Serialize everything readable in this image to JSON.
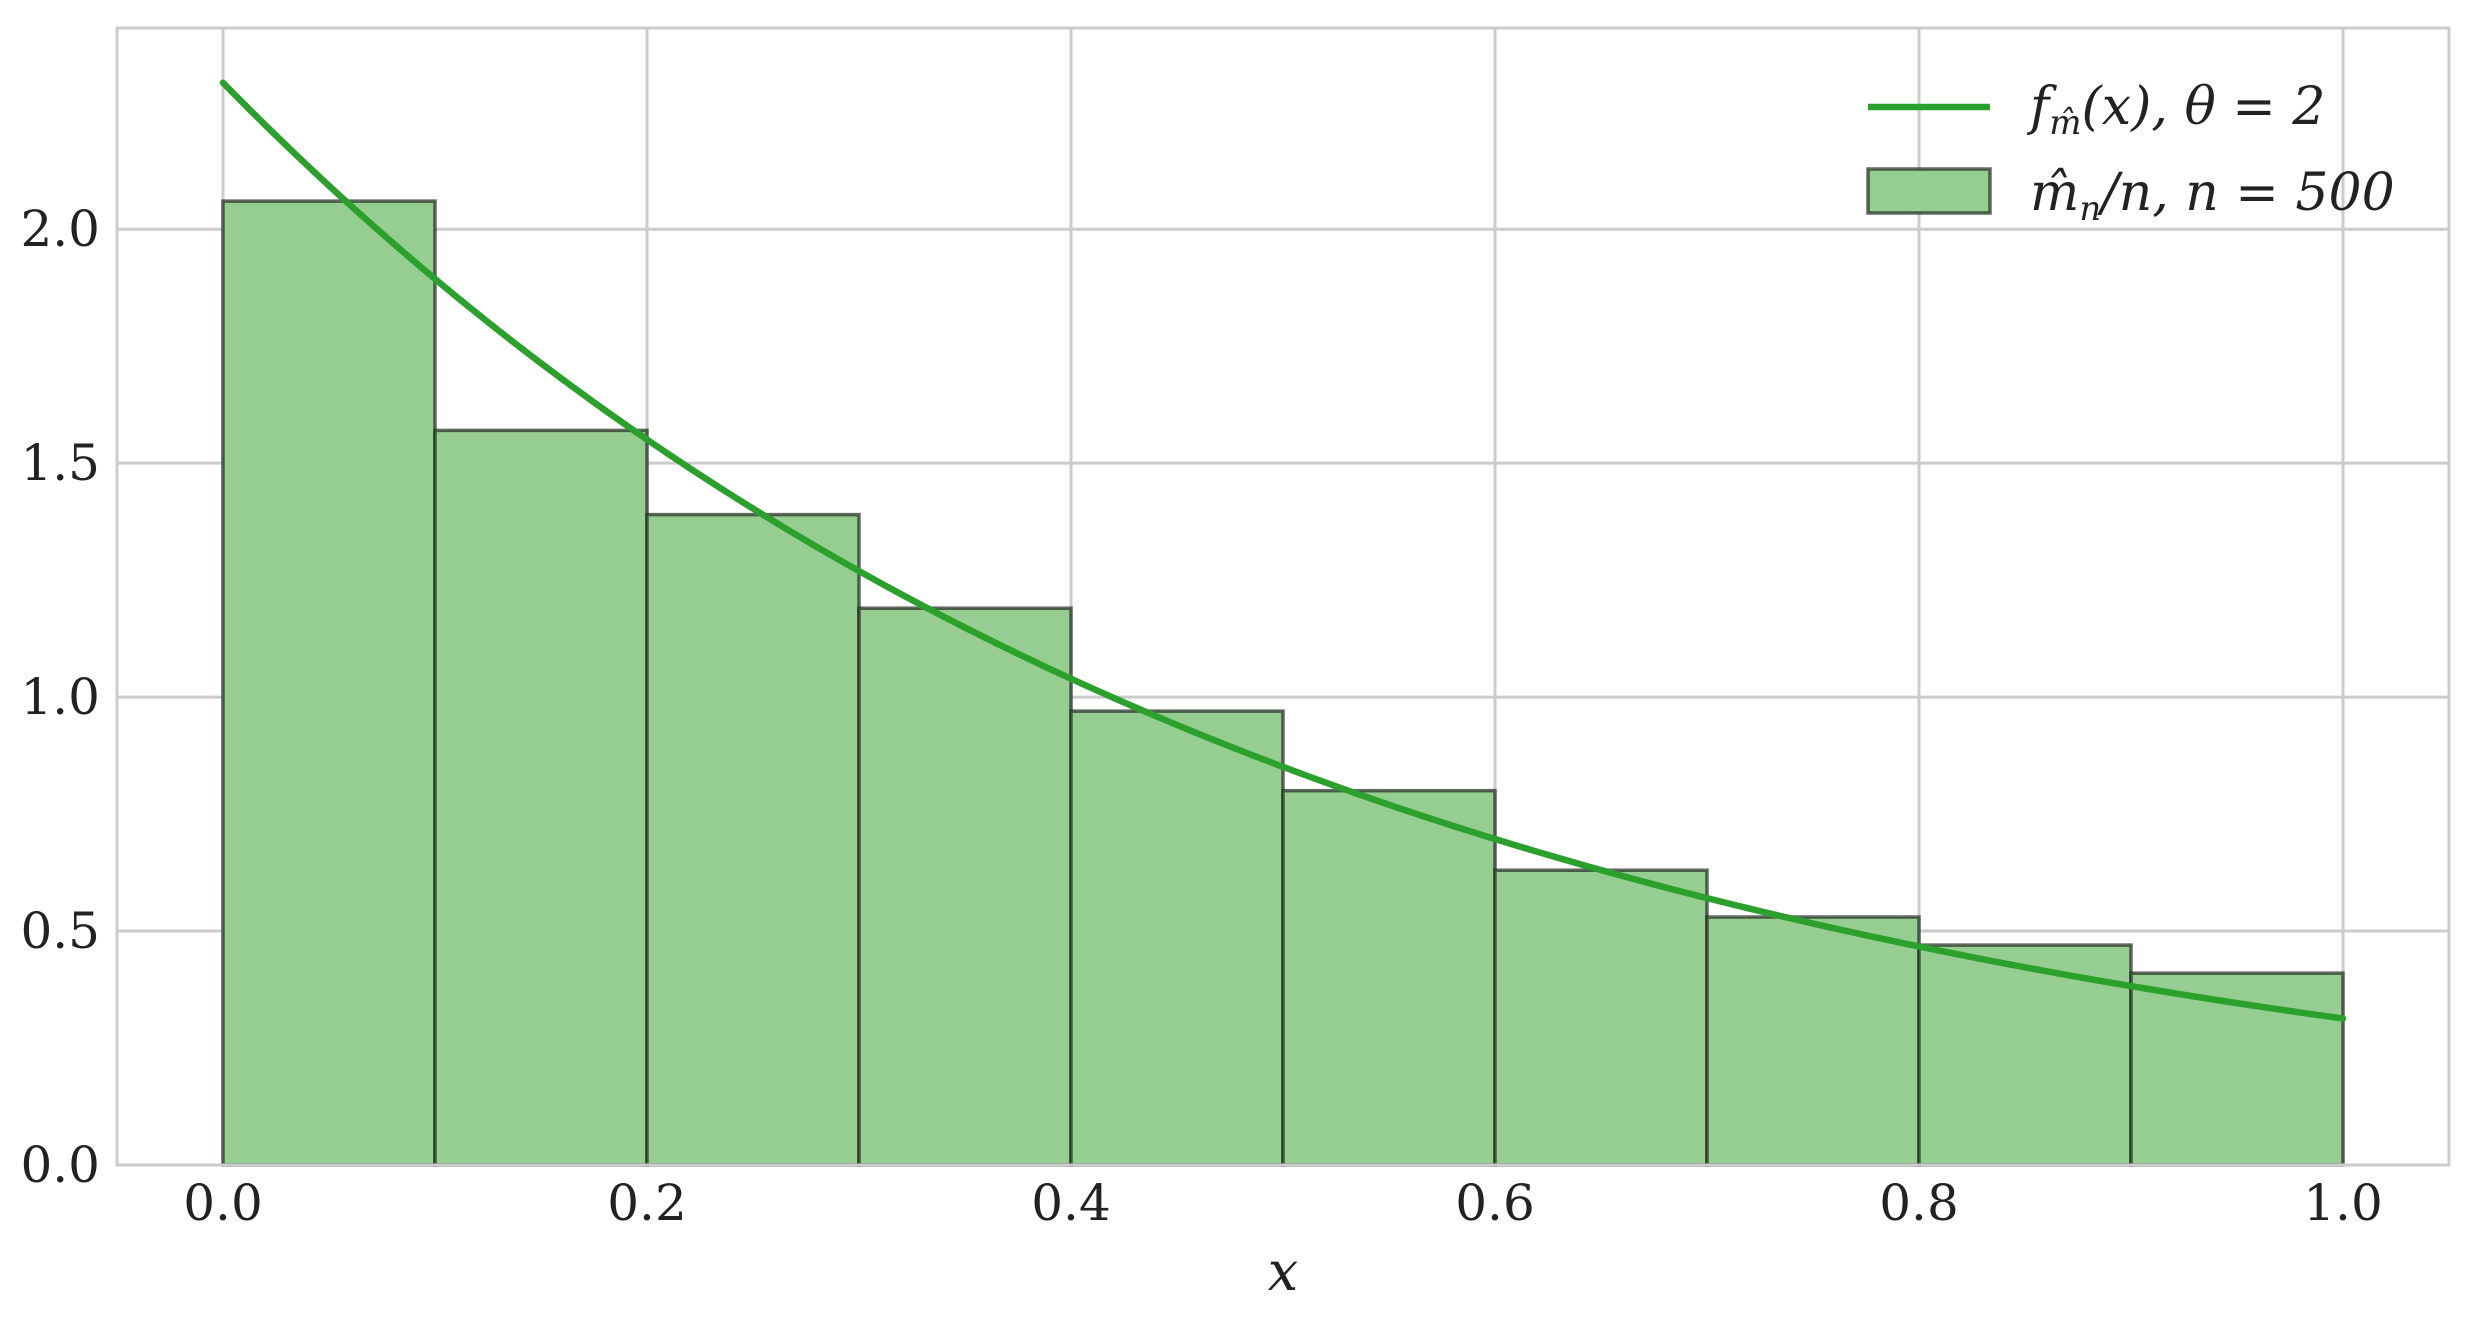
{
  "chart_data": {
    "type": "bar",
    "subtype": "histogram-with-density-curve",
    "xlabel": "x",
    "ylabel": "",
    "xlim": [
      -0.05,
      1.05
    ],
    "ylim": [
      0,
      2.43
    ],
    "xticks": [
      0.0,
      0.2,
      0.4,
      0.6,
      0.8,
      1.0
    ],
    "xtick_labels": [
      "0.0",
      "0.2",
      "0.4",
      "0.6",
      "0.8",
      "1.0"
    ],
    "yticks": [
      0.0,
      0.5,
      1.0,
      1.5,
      2.0
    ],
    "ytick_labels": [
      "0.0",
      "0.5",
      "1.0",
      "1.5",
      "2.0"
    ],
    "grid": true,
    "legend_position": "top-right",
    "histogram": {
      "bin_edges": [
        0.0,
        0.1,
        0.2,
        0.3,
        0.4,
        0.5,
        0.6,
        0.7,
        0.8,
        0.9,
        1.0
      ],
      "values": [
        2.06,
        1.57,
        1.39,
        1.19,
        0.97,
        0.8,
        0.63,
        0.53,
        0.47,
        0.41
      ],
      "color": "#96ce92",
      "edge_color": "#1f2a1f"
    },
    "curve": {
      "theta": 2,
      "function": "theta*exp(-theta*x)/(1-exp(-theta))",
      "x_range": [
        0,
        1
      ],
      "color": "#2ca02c"
    },
    "legend": [
      {
        "kind": "line",
        "label_main": "f",
        "label_sub": "m̂",
        "label_rest": "(x), θ = 2",
        "color": "#2ca02c"
      },
      {
        "kind": "patch",
        "label_main": "m̂",
        "label_sub": "n",
        "label_rest": "/n, n = 500",
        "color": "#96ce92"
      }
    ]
  }
}
